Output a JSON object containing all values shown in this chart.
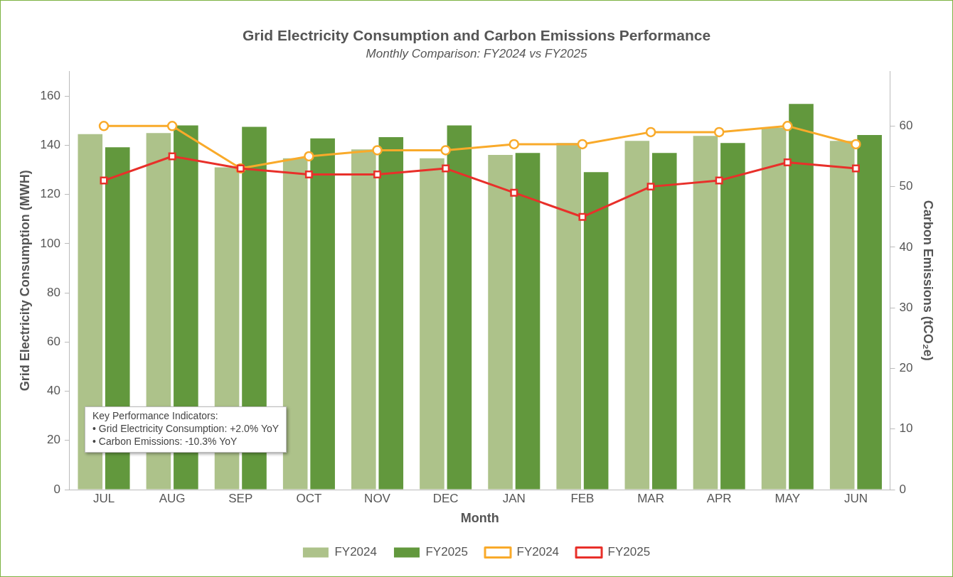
{
  "chart_data": {
    "type": "bar",
    "title": "Grid Electricity Consumption and Carbon Emissions Performance",
    "subtitle": "Monthly Comparison: FY2024 vs FY2025",
    "xlabel": "Month",
    "ylabel": "Grid Electricity Consumption (MWH)",
    "y2label": "Carbon Emissions (tCO₂e)",
    "categories": [
      "JUL",
      "AUG",
      "SEP",
      "OCT",
      "NOV",
      "DEC",
      "JAN",
      "FEB",
      "MAR",
      "APR",
      "MAY",
      "JUN"
    ],
    "series": [
      {
        "name": "FY2024",
        "color": "#adc28a",
        "values": [
          144.5,
          145,
          131,
          134.7,
          138.3,
          134.7,
          136.1,
          140.9,
          141.8,
          143.8,
          147.1,
          141.8
        ]
      },
      {
        "name": "FY2025",
        "color": "#62983d",
        "values": [
          139.2,
          148.1,
          147.5,
          142.8,
          143.3,
          148.1,
          136.9,
          129.1,
          136.9,
          140.9,
          156.8,
          144.2
        ]
      },
      {
        "name": "FY2024",
        "type": "line",
        "axis": "y2",
        "marker": "circle",
        "color": "#f9aa2a",
        "values": [
          60,
          60,
          53,
          55,
          56,
          56,
          57,
          57,
          59,
          59,
          60,
          57
        ]
      },
      {
        "name": "FY2025",
        "type": "line",
        "axis": "y2",
        "marker": "square",
        "color": "#e8302a",
        "values": [
          51,
          55,
          53,
          52,
          52,
          53,
          49,
          45,
          50,
          51,
          54,
          53
        ]
      }
    ],
    "ylim": [
      0,
      170
    ],
    "yticks": [
      0,
      20,
      40,
      60,
      80,
      100,
      120,
      140,
      160
    ],
    "y2lim": [
      0,
      69
    ],
    "y2ticks": [
      0,
      10,
      20,
      30,
      40,
      50,
      60
    ],
    "grid": false,
    "legend": "bottom",
    "line_style": "solid",
    "annotations": [
      "Key Performance Indicators:",
      "• Grid Electricity Consumption: +2.0% YoY",
      "• Carbon Emissions: -10.3% YoY"
    ]
  }
}
